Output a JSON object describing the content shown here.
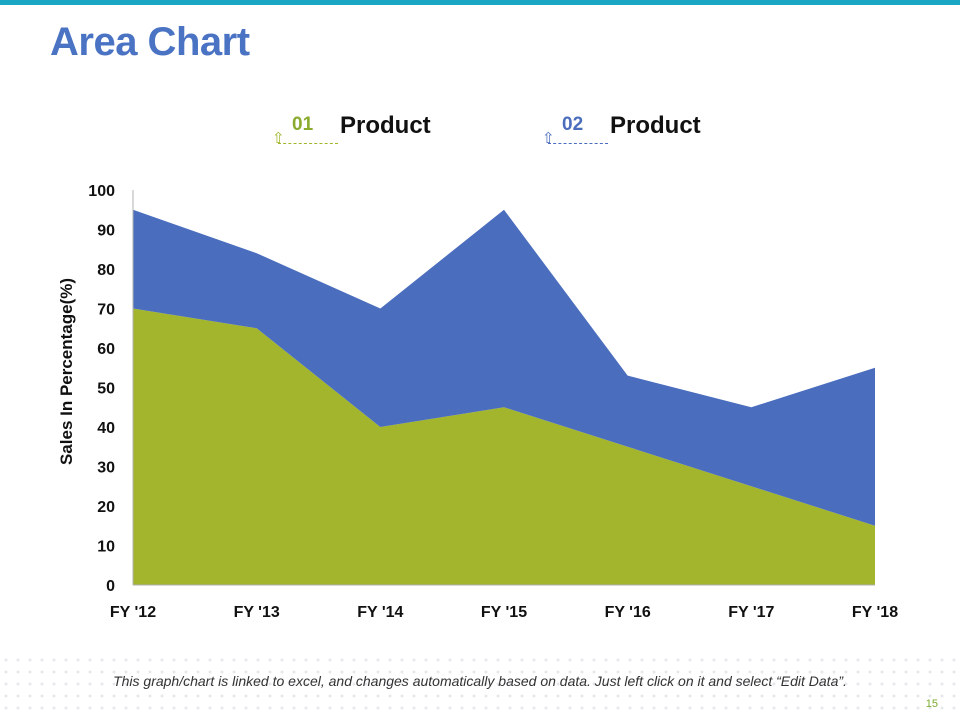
{
  "slide": {
    "title": "Area Chart",
    "footer_note": "This graph/chart is linked to excel, and changes automatically based on data. Just left click on it and select “Edit Data”.",
    "page_number": "15",
    "accent_color": "#1aa7c3"
  },
  "legend": [
    {
      "number": "01",
      "label": "Product",
      "color": "#a2b52c",
      "icon": "up-arrow-icon"
    },
    {
      "number": "02",
      "label": "Product",
      "color": "#4a6dbe",
      "icon": "up-arrow-icon"
    }
  ],
  "chart_data": {
    "type": "area",
    "stacked": true,
    "categories": [
      "FY '12",
      "FY '13",
      "FY '14",
      "FY '15",
      "FY '16",
      "FY '17",
      "FY '18"
    ],
    "series": [
      {
        "name": "Product 01",
        "values": [
          70,
          65,
          40,
          45,
          35,
          25,
          15
        ],
        "color": "#a2b52c"
      },
      {
        "name": "Product 02",
        "values": [
          25,
          19,
          30,
          50,
          18,
          20,
          40
        ],
        "color": "#4a6dbe"
      }
    ],
    "title": "",
    "xlabel": "",
    "ylabel": "Sales In Percentage(%)",
    "ylim": [
      0,
      100
    ],
    "yticks": [
      0,
      10,
      20,
      30,
      40,
      50,
      60,
      70,
      80,
      90,
      100
    ],
    "grid": false,
    "legend_position": "top"
  }
}
